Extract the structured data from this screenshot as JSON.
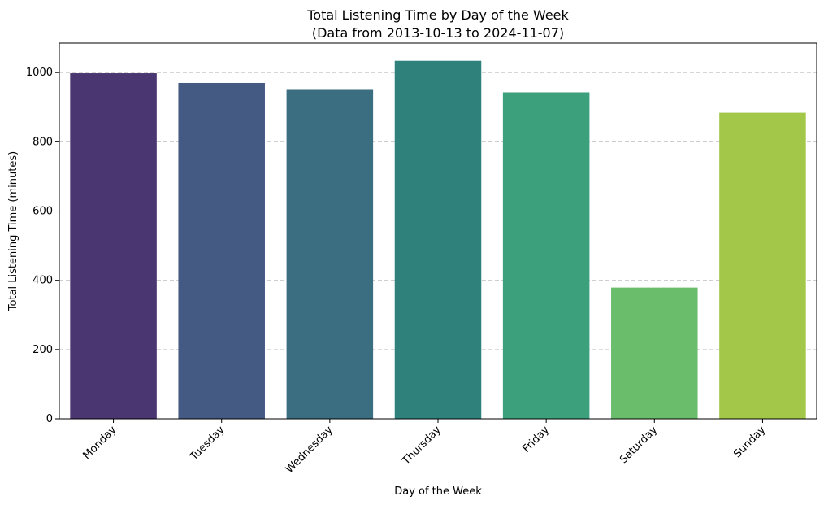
{
  "chart_data": {
    "type": "bar",
    "title": "Total Listening Time by Day of the Week",
    "subtitle": "(Data from 2013-10-13 to 2024-11-07)",
    "xlabel": "Day of the Week",
    "ylabel": "Total Listening Time (minutes)",
    "categories": [
      "Monday",
      "Tuesday",
      "Wednesday",
      "Thursday",
      "Friday",
      "Saturday",
      "Sunday"
    ],
    "values": [
      998,
      970,
      950,
      1034,
      943,
      379,
      884
    ],
    "colors": [
      "#4a3671",
      "#445a83",
      "#3a6e80",
      "#2e827b",
      "#3ca07c",
      "#6abd6a",
      "#a3c749"
    ],
    "ylim": [
      0,
      1085
    ],
    "yticks": [
      0,
      200,
      400,
      600,
      800,
      1000
    ],
    "grid": "horizontal dashed",
    "legend": "none"
  }
}
